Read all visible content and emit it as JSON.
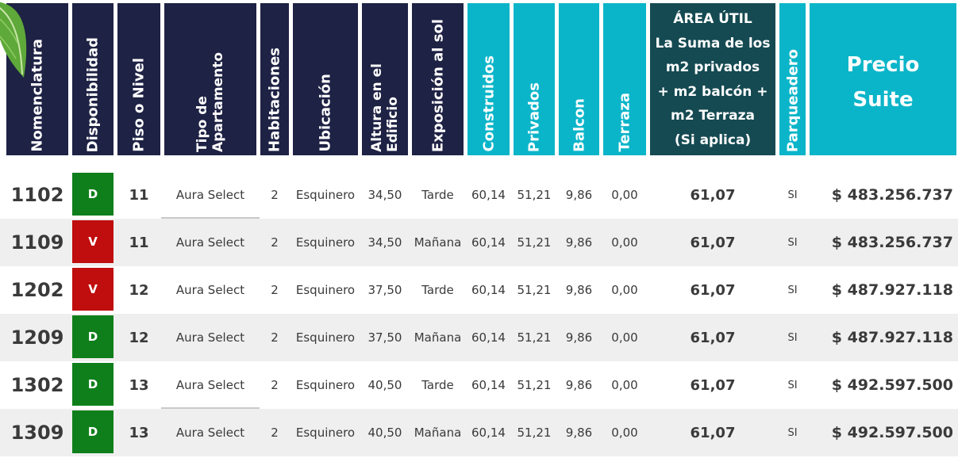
{
  "headers": {
    "nomenclatura": "Nomenclatura",
    "disponibilidad": "Disponibilidad",
    "piso": "Piso o Nivel",
    "tipo": "Tipo de\nApartamento",
    "habitaciones": "Habitaciones",
    "ubicacion": "Ubicación",
    "altura": "Altura en el\nEdificio",
    "exposicion": "Exposición al sol",
    "construidos": "Construidos",
    "privados": "Privados",
    "balcon": "Balcon",
    "terraza": "Terraza",
    "area_util": "ÁREA ÚTIL\nLa Suma de los\nm2 privados\n+ m2 balcón +\nm2 Terraza\n(Si aplica)",
    "parqueadero": "Parqueadero",
    "precio": "Precio\nSuite"
  },
  "colors": {
    "header_navy": "#1e2244",
    "header_cyan": "#0bb5c9",
    "header_teal": "#154a52",
    "status_D": "#0f7f1b",
    "status_V": "#c00d0d",
    "row_shade": "#efefef"
  },
  "icons": {
    "decoration": "leaf-icon"
  },
  "rows": [
    {
      "nom": "1102",
      "disp": "D",
      "piso": "11",
      "tipo": "Aura Select",
      "hab": "2",
      "ubic": "Esquinero",
      "altura": "34,50",
      "expo": "Tarde",
      "cons": "60,14",
      "priv": "51,21",
      "balcon": "9,86",
      "terraza": "0,00",
      "util": "61,07",
      "parq": "SI",
      "precio": "$ 483.256.737"
    },
    {
      "nom": "1109",
      "disp": "V",
      "piso": "11",
      "tipo": "Aura Select",
      "hab": "2",
      "ubic": "Esquinero",
      "altura": "34,50",
      "expo": "Mañana",
      "cons": "60,14",
      "priv": "51,21",
      "balcon": "9,86",
      "terraza": "0,00",
      "util": "61,07",
      "parq": "SI",
      "precio": "$ 483.256.737"
    },
    {
      "nom": "1202",
      "disp": "V",
      "piso": "12",
      "tipo": "Aura Select",
      "hab": "2",
      "ubic": "Esquinero",
      "altura": "37,50",
      "expo": "Tarde",
      "cons": "60,14",
      "priv": "51,21",
      "balcon": "9,86",
      "terraza": "0,00",
      "util": "61,07",
      "parq": "SI",
      "precio": "$ 487.927.118"
    },
    {
      "nom": "1209",
      "disp": "D",
      "piso": "12",
      "tipo": "Aura Select",
      "hab": "2",
      "ubic": "Esquinero",
      "altura": "37,50",
      "expo": "Mañana",
      "cons": "60,14",
      "priv": "51,21",
      "balcon": "9,86",
      "terraza": "0,00",
      "util": "61,07",
      "parq": "SI",
      "precio": "$ 487.927.118"
    },
    {
      "nom": "1302",
      "disp": "D",
      "piso": "13",
      "tipo": "Aura Select",
      "hab": "2",
      "ubic": "Esquinero",
      "altura": "40,50",
      "expo": "Tarde",
      "cons": "60,14",
      "priv": "51,21",
      "balcon": "9,86",
      "terraza": "0,00",
      "util": "61,07",
      "parq": "SI",
      "precio": "$ 492.597.500"
    },
    {
      "nom": "1309",
      "disp": "D",
      "piso": "13",
      "tipo": "Aura Select",
      "hab": "2",
      "ubic": "Esquinero",
      "altura": "40,50",
      "expo": "Mañana",
      "cons": "60,14",
      "priv": "51,21",
      "balcon": "9,86",
      "terraza": "0,00",
      "util": "61,07",
      "parq": "SI",
      "precio": "$ 492.597.500"
    }
  ]
}
